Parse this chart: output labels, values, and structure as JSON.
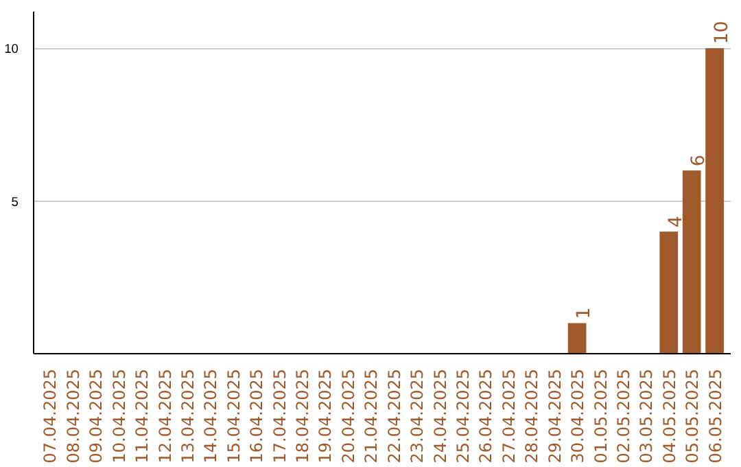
{
  "chart_data": {
    "type": "bar",
    "categories": [
      "07.04.2025",
      "08.04.2025",
      "09.04.2025",
      "10.04.2025",
      "11.04.2025",
      "12.04.2025",
      "13.04.2025",
      "14.04.2025",
      "15.04.2025",
      "16.04.2025",
      "17.04.2025",
      "18.04.2025",
      "19.04.2025",
      "20.04.2025",
      "21.04.2025",
      "22.04.2025",
      "23.04.2025",
      "24.04.2025",
      "25.04.2025",
      "26.04.2025",
      "27.04.2025",
      "28.04.2025",
      "29.04.2025",
      "30.04.2025",
      "01.05.2025",
      "02.05.2025",
      "03.05.2025",
      "04.05.2025",
      "05.05.2025",
      "06.05.2025"
    ],
    "values": [
      0,
      0,
      0,
      0,
      0,
      0,
      0,
      0,
      0,
      0,
      0,
      0,
      0,
      0,
      0,
      0,
      0,
      0,
      0,
      0,
      0,
      0,
      0,
      1,
      0,
      0,
      0,
      4,
      6,
      10
    ],
    "value_labels": [
      null,
      null,
      null,
      null,
      null,
      null,
      null,
      null,
      null,
      null,
      null,
      null,
      null,
      null,
      null,
      null,
      null,
      null,
      null,
      null,
      null,
      null,
      null,
      "1",
      null,
      null,
      null,
      "4",
      "6",
      "10"
    ],
    "color": "#a0592b",
    "ylim": [
      0,
      11.2
    ],
    "yticks": [
      5,
      10
    ],
    "grid": "y"
  }
}
